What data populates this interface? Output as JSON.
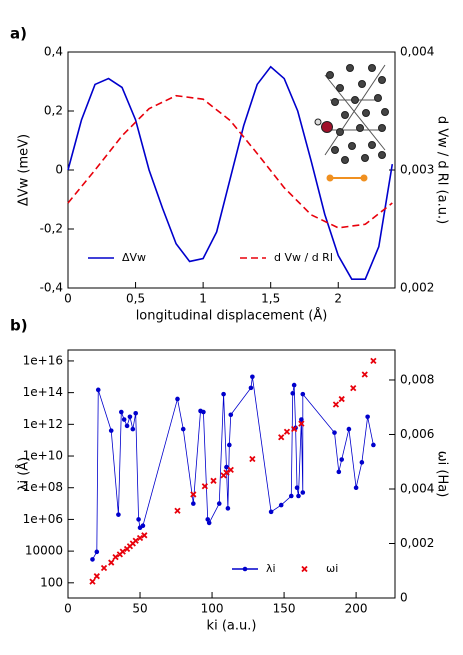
{
  "chart_data": [
    {
      "type": "line",
      "panel_label": "a)",
      "xlabel": "longitudinal displacement (Å)",
      "ylabel": "ΔVw (meV)",
      "y2label": "d Vw / d Rl (a.u.)",
      "xlim": [
        0,
        2.42
      ],
      "xticks": [
        0,
        {
          "value": 0.5,
          "label": "0,5"
        },
        1,
        {
          "value": 1.5,
          "label": "1,5"
        },
        2
      ],
      "ylim": [
        -0.4,
        0.4
      ],
      "yticks": [
        {
          "value": -0.4,
          "label": "-0,4"
        },
        {
          "value": -0.2,
          "label": "-0,2"
        },
        0,
        {
          "value": 0.2,
          "label": "0,2"
        },
        {
          "value": 0.4,
          "label": "0,4"
        }
      ],
      "y2lim": [
        0.002,
        0.004
      ],
      "y2ticks": [
        {
          "value": 0.002,
          "label": "0,002"
        },
        {
          "value": 0.003,
          "label": "0,003"
        },
        {
          "value": 0.004,
          "label": "0,004"
        }
      ],
      "series": [
        {
          "name": "ΔVw",
          "color": "#0000cc",
          "style": "line",
          "x": [
            0,
            0.1,
            0.2,
            0.3,
            0.4,
            0.5,
            0.6,
            0.7,
            0.8,
            0.9,
            1.0,
            1.1,
            1.2,
            1.3,
            1.4,
            1.5,
            1.6,
            1.7,
            1.8,
            1.9,
            2.0,
            2.1,
            2.2,
            2.3,
            2.4
          ],
          "values": [
            0,
            0.17,
            0.29,
            0.31,
            0.28,
            0.17,
            0.0,
            -0.13,
            -0.25,
            -0.31,
            -0.3,
            -0.21,
            -0.03,
            0.15,
            0.29,
            0.35,
            0.31,
            0.2,
            0.03,
            -0.15,
            -0.29,
            -0.37,
            -0.37,
            -0.26,
            0.02
          ]
        },
        {
          "name": "d Vw / d Rl",
          "color": "#e8000b",
          "style": "dashed",
          "axis": "y2",
          "x": [
            0,
            0.2,
            0.4,
            0.6,
            0.8,
            1.0,
            1.2,
            1.4,
            1.6,
            1.8,
            2.0,
            2.2,
            2.4
          ],
          "values": [
            0.00272,
            0.003,
            0.00329,
            0.00352,
            0.00363,
            0.0036,
            0.00342,
            0.00314,
            0.00285,
            0.00262,
            0.00251,
            0.00254,
            0.00272
          ]
        }
      ]
    },
    {
      "type": "scatter",
      "panel_label": "b)",
      "xlabel": "ki (a.u.)",
      "ylabel": "λi (Å)",
      "y2label": "ωi (Ha)",
      "log_y": true,
      "xlim": [
        0,
        227
      ],
      "xticks": [
        0,
        50,
        100,
        150,
        200
      ],
      "ylim": [
        11,
        49000000000000000
      ],
      "yticks": [
        100,
        10000,
        {
          "value": 1000000,
          "label": "1e+06"
        },
        {
          "value": 100000000,
          "label": "1e+08"
        },
        {
          "value": 10000000000,
          "label": "1e+10"
        },
        {
          "value": 1000000000000,
          "label": "1e+12"
        },
        {
          "value": 100000000000000,
          "label": "1e+14"
        },
        {
          "value": 10000000000000000,
          "label": "1e+16"
        }
      ],
      "y2lim": [
        0,
        0.0091
      ],
      "y2ticks": [
        0,
        {
          "value": 0.002,
          "label": "0,002"
        },
        {
          "value": 0.004,
          "label": "0,004"
        },
        {
          "value": 0.006,
          "label": "0,006"
        },
        {
          "value": 0.008,
          "label": "0,008"
        }
      ],
      "series": [
        {
          "name": "λi",
          "color": "#0000cc",
          "style": "line-markers",
          "marker": "circle",
          "x": [
            17,
            20,
            21,
            30,
            35,
            37,
            39,
            41,
            43,
            45,
            47,
            49,
            50,
            52,
            76,
            80,
            87,
            92,
            94,
            97,
            98,
            105,
            108,
            110,
            111,
            112,
            113,
            127,
            128,
            141,
            148,
            155,
            156,
            157,
            158,
            159,
            160,
            162,
            163,
            163,
            185,
            188,
            190,
            195,
            200,
            204,
            208,
            212
          ],
          "values": [
            3000,
            9000,
            150000000000000.0,
            400000000000.0,
            2000000.0,
            6000000000000.0,
            2000000000000.0,
            800000000000.0,
            3000000000000.0,
            500000000000.0,
            5000000000000.0,
            1000000.0,
            300000.0,
            400000.0,
            40000000000000.0,
            500000000000.0,
            10000000.0,
            7000000000000.0,
            6000000000000.0,
            1000000.0,
            600000.0,
            10000000.0,
            80000000000000.0,
            2000000000.0,
            5000000.0,
            50000000000.0,
            4000000000000.0,
            200000000000000.0,
            1000000000000000.0,
            3000000.0,
            8000000.0,
            30000000.0,
            90000000000000.0,
            300000000000000.0,
            600000000000.0,
            100000000.0,
            30000000.0,
            2000000000000.0,
            50000000.0,
            80000000000000.0,
            300000000000.0,
            1000000000.0,
            6000000000.0,
            500000000000.0,
            100000000.0,
            4000000000.0,
            3000000000000.0,
            50000000000.0
          ]
        },
        {
          "name": "ωi",
          "color": "#e8000b",
          "style": "markers",
          "marker": "x",
          "axis": "y2",
          "x": [
            17,
            20,
            25,
            30,
            33,
            36,
            38,
            41,
            43,
            45,
            47,
            50,
            53,
            76,
            87,
            95,
            101,
            108,
            110,
            113,
            128,
            148,
            152,
            157,
            162,
            186,
            190,
            198,
            206,
            212
          ],
          "values": [
            0.0006,
            0.0008,
            0.0011,
            0.0013,
            0.0015,
            0.0016,
            0.0017,
            0.0018,
            0.0019,
            0.002,
            0.0021,
            0.0022,
            0.0023,
            0.0032,
            0.0038,
            0.0041,
            0.0043,
            0.0045,
            0.0046,
            0.0047,
            0.0051,
            0.0059,
            0.0061,
            0.0062,
            0.0064,
            0.0071,
            0.0073,
            0.0077,
            0.0082,
            0.0087
          ]
        }
      ]
    }
  ]
}
